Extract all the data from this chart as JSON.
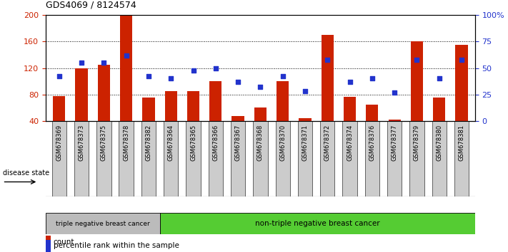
{
  "title": "GDS4069 / 8124574",
  "samples": [
    "GSM678369",
    "GSM678373",
    "GSM678375",
    "GSM678378",
    "GSM678382",
    "GSM678364",
    "GSM678365",
    "GSM678366",
    "GSM678367",
    "GSM678368",
    "GSM678370",
    "GSM678371",
    "GSM678372",
    "GSM678374",
    "GSM678376",
    "GSM678377",
    "GSM678379",
    "GSM678380",
    "GSM678381"
  ],
  "counts": [
    78,
    120,
    125,
    200,
    75,
    85,
    85,
    100,
    47,
    60,
    100,
    44,
    170,
    77,
    65,
    42,
    160,
    75,
    155
  ],
  "percentiles": [
    42,
    55,
    55,
    62,
    42,
    40,
    48,
    50,
    37,
    32,
    42,
    28,
    58,
    37,
    40,
    27,
    58,
    40,
    58
  ],
  "ylim_left": [
    40,
    200
  ],
  "ylim_right": [
    0,
    100
  ],
  "yticks_left": [
    40,
    80,
    120,
    160,
    200
  ],
  "yticks_right": [
    0,
    25,
    50,
    75,
    100
  ],
  "ytick_labels_right": [
    "0",
    "25",
    "50",
    "75",
    "100%"
  ],
  "bar_color": "#cc2200",
  "dot_color": "#2233cc",
  "group1_count": 5,
  "group1_label": "triple negative breast cancer",
  "group2_label": "non-triple negative breast cancer",
  "disease_state_label": "disease state",
  "group1_bg": "#bbbbbb",
  "group2_bg": "#55cc33",
  "legend_count_label": "count",
  "legend_pct_label": "percentile rank within the sample",
  "bar_width": 0.55,
  "tick_label_color_left": "#cc2200",
  "tick_label_color_right": "#2233cc"
}
